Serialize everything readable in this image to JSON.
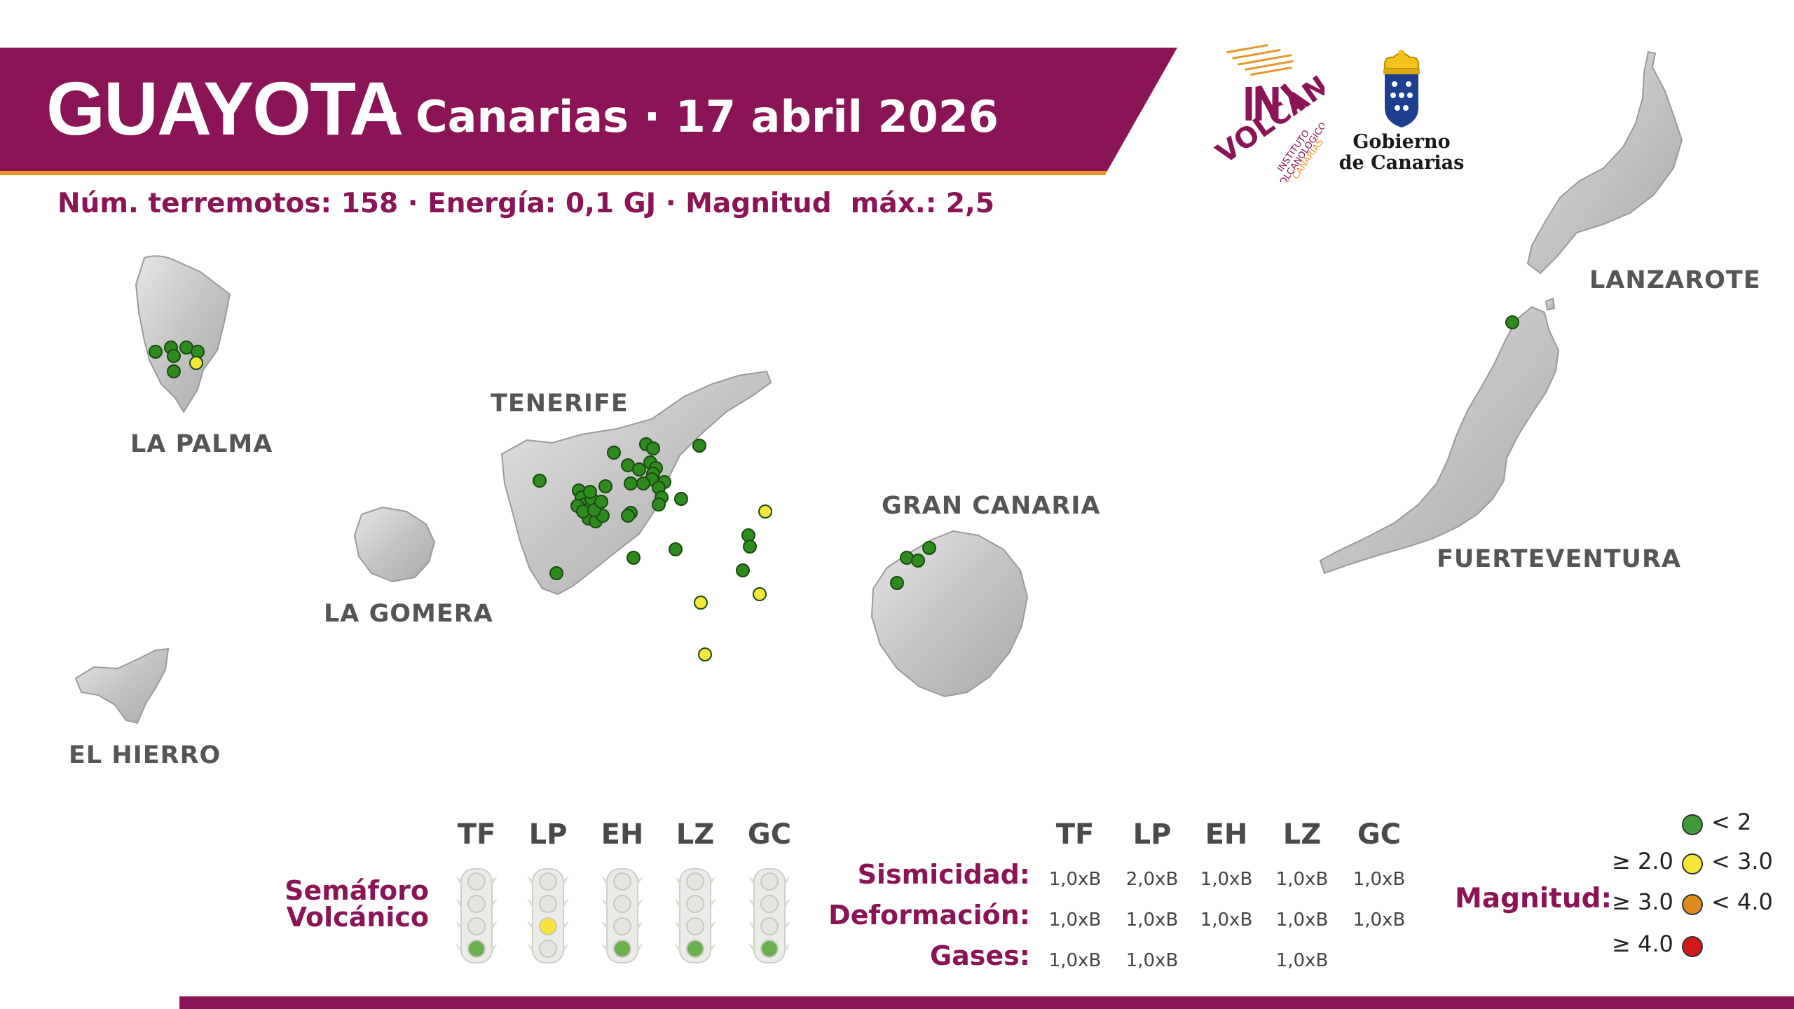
{
  "header": {
    "title": "GUAYOTA",
    "subtitle": "· Canarias · 17 abril 2026",
    "stats": "Núm. terremotos: 158 · Energía: 0,1 GJ · Magnitud  máx.: 2,5",
    "colors": {
      "banner": "#8b1457",
      "accent_line": "#e8962b"
    }
  },
  "logos": {
    "ivc_icon": "involcan-logo",
    "ivc_text": [
      "INSTITUTO",
      "VOLCANOLÓGICO",
      "DE CANARIAS"
    ],
    "gob_icon": "canarias-coat-of-arms",
    "gob_text_line1": "Gobierno",
    "gob_text_line2": "de Canarias"
  },
  "map": {
    "islands": [
      {
        "id": "la-palma",
        "label": "LA PALMA"
      },
      {
        "id": "tenerife",
        "label": "TENERIFE"
      },
      {
        "id": "la-gomera",
        "label": "LA GOMERA"
      },
      {
        "id": "el-hierro",
        "label": "EL HIERRO"
      },
      {
        "id": "gran-canaria",
        "label": "GRAN CANARIA"
      },
      {
        "id": "lanzarote",
        "label": "LANZAROTE"
      },
      {
        "id": "fuerteventura",
        "label": "FUERTEVENTURA"
      }
    ],
    "marker_colors": {
      "lt2": "#2e8b1e",
      "2to3": "#f5e63a"
    }
  },
  "semaforo": {
    "title_line1": "Semáforo",
    "title_line2": "Volcánico",
    "islands": [
      {
        "code": "TF",
        "level": "verde"
      },
      {
        "code": "LP",
        "level": "amarillo"
      },
      {
        "code": "EH",
        "level": "verde"
      },
      {
        "code": "LZ",
        "level": "verde"
      },
      {
        "code": "GC",
        "level": "verde"
      }
    ],
    "colors": {
      "verde": "#6ab04c",
      "amarillo": "#f7e23a",
      "off": "#e4e4e0"
    }
  },
  "table": {
    "columns": [
      "TF",
      "LP",
      "EH",
      "LZ",
      "GC"
    ],
    "rows": [
      {
        "label": "Sismicidad:",
        "values": [
          "1,0xB",
          "2,0xB",
          "1,0xB",
          "1,0xB",
          "1,0xB"
        ]
      },
      {
        "label": "Deformación:",
        "values": [
          "1,0xB",
          "1,0xB",
          "1,0xB",
          "1,0xB",
          "1,0xB"
        ]
      },
      {
        "label": "Gases:",
        "values": [
          "1,0xB",
          "1,0xB",
          "",
          "1,0xB",
          ""
        ]
      }
    ]
  },
  "legend": {
    "title": "Magnitud:",
    "items": [
      {
        "left": "",
        "right": "< 2",
        "color": "#3f9a3a"
      },
      {
        "left": "≥ 2.0",
        "right": "< 3.0",
        "color": "#f7e63a"
      },
      {
        "left": "≥ 3.0",
        "right": "< 4.0",
        "color": "#e08a22"
      },
      {
        "left": "≥ 4.0",
        "right": "",
        "color": "#d01a1a"
      }
    ]
  }
}
